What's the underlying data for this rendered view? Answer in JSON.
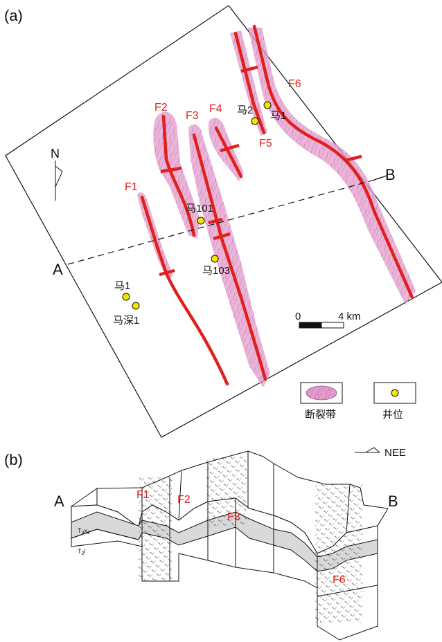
{
  "panels": {
    "a": "(a)",
    "b": "(b)"
  },
  "map": {
    "north": "N",
    "section_start": "A",
    "section_end": "B",
    "faults": [
      "F1",
      "F2",
      "F3",
      "F4",
      "F5",
      "F6"
    ],
    "wells": [
      "马2",
      "马1",
      "马101",
      "马103",
      "马1",
      "马深1"
    ],
    "scale": {
      "start": "0",
      "end": "4 km"
    }
  },
  "legend": {
    "fault_zone": "断裂带",
    "well": "井位"
  },
  "section": {
    "start": "A",
    "end": "B",
    "direction": "NEE",
    "faults": [
      "F1",
      "F2",
      "F3",
      "F6"
    ],
    "layers": {
      "upper": "T3x2",
      "upper_base": "T",
      "upper_sub": "3",
      "upper_letter": "x",
      "upper_sub2": "2",
      "lower_base": "T",
      "lower_sub": "2",
      "lower_letter": "l"
    }
  },
  "colors": {
    "fault_line": "#e0201c",
    "fault_zone": "#e59bc8",
    "fracture": "#8a4fb3",
    "well_fill": "#f5e300",
    "layer_band": "#d9d9d9"
  }
}
